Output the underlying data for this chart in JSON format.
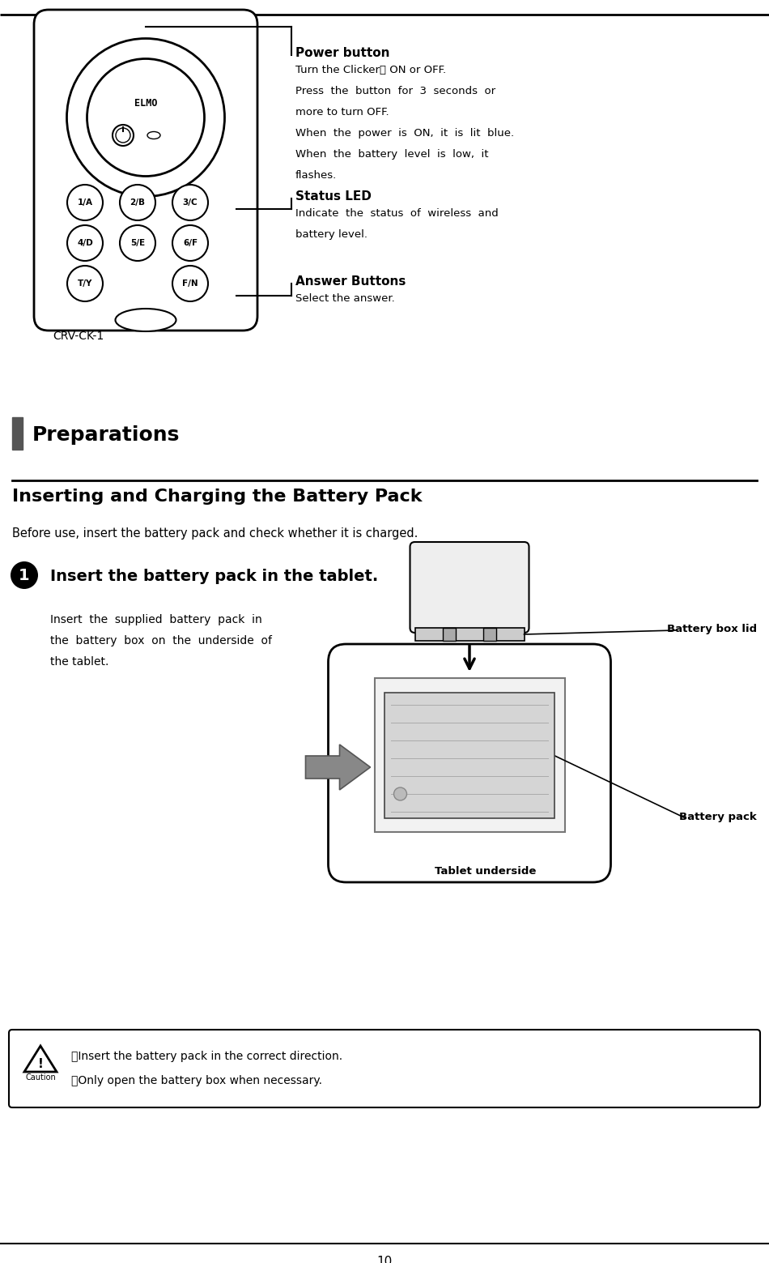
{
  "bg_color": "#ffffff",
  "top_line_color": "#000000",
  "page_number": "10",
  "section_bar_color": "#555555",
  "preparations_title": "Preparations",
  "inserting_title": "Inserting and Charging the Battery Pack",
  "before_use_text": "Before use, insert the battery pack and check whether it is charged.",
  "step1_title": "Insert the battery pack in the tablet.",
  "insert_text_line1": "Insert  the  supplied  battery  pack  in",
  "insert_text_line2": "the  battery  box  on  the  underside  of",
  "insert_text_line3": "the tablet.",
  "caution_line1": "・Insert the battery pack in the correct direction.",
  "caution_line2": "・Only open the battery box when necessary.",
  "power_button_title": "Power button",
  "power_button_desc1": "Turn the Clicker　 ON or OFF.",
  "power_button_desc2": "Press  the  button  for  3  seconds  or",
  "power_button_desc3": "more to turn OFF.",
  "power_button_desc4": "When  the  power  is  ON,  it  is  lit  blue.",
  "power_button_desc5": "When  the  battery  level  is  low,  it",
  "power_button_desc6": "flashes.",
  "status_led_title": "Status LED",
  "status_led_desc1": "Indicate  the  status  of  wireless  and",
  "status_led_desc2": "battery level.",
  "answer_buttons_title": "Answer Buttons",
  "answer_buttons_desc": "Select the answer.",
  "crv_label": "CRV-CK-1",
  "battery_box_lid": "Battery box lid",
  "battery_pack": "Battery pack",
  "tablet_underside": "Tablet underside"
}
